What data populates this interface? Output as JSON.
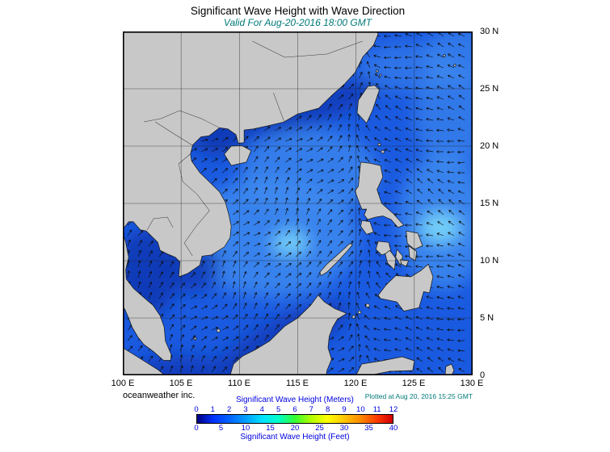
{
  "title": "Significant Wave Height with Wave Direction",
  "subtitle": "Valid For Aug-20-2016 18:00 GMT",
  "footer": {
    "credit": "oceanweather inc.",
    "plotted": "Plotted at Aug 20, 2016 15:25 GMT"
  },
  "colors": {
    "accent_teal": "#007878"
  },
  "map": {
    "lon_labels": [
      "100 E",
      "105 E",
      "110 E",
      "115 E",
      "120 E",
      "125 E",
      "130 E"
    ],
    "lat_labels": [
      "30 N",
      "25 N",
      "20 N",
      "15 N",
      "10 N",
      "5 N",
      "0"
    ],
    "land_color": "#c8c8c8",
    "ocean_base_color": "#1a5ae0"
  },
  "legend": {
    "meters_label": "Significant Wave Height (Meters)",
    "feet_label": "Significant Wave Height (Feet)",
    "meters_ticks": [
      "0",
      "1",
      "2",
      "3",
      "4",
      "5",
      "6",
      "7",
      "8",
      "9",
      "10",
      "11",
      "12"
    ],
    "feet_ticks": [
      "0",
      "5",
      "10",
      "15",
      "20",
      "25",
      "30",
      "35",
      "40"
    ],
    "gradient_colors": [
      "#000080",
      "#0032ff",
      "#0064ff",
      "#00a0ff",
      "#00e1ff",
      "#00ffc8",
      "#32ff32",
      "#b4ff00",
      "#ffff00",
      "#ffc800",
      "#ff8c00",
      "#ff3c00",
      "#d20000"
    ],
    "text_color": "#0000e0"
  }
}
